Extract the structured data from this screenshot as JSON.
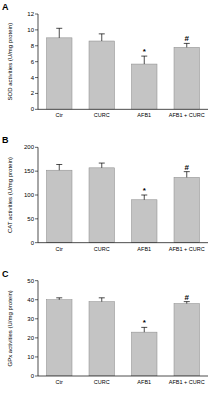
{
  "chart_data": [
    {
      "type": "bar",
      "title": "A",
      "y_label": "SOD activities (U/mg protein)",
      "categories": [
        "Ctr",
        "CURC",
        "AFB1",
        "AFB1 + CURC"
      ],
      "values": [
        9.0,
        8.6,
        5.7,
        7.8
      ],
      "errors": [
        1.2,
        0.9,
        1.0,
        0.5
      ],
      "color": "#c4c4c4",
      "ylim": [
        0,
        12
      ],
      "yticks": [
        0,
        2,
        4,
        6,
        8,
        10,
        12
      ],
      "grid": false,
      "annotations": [
        {
          "category": "AFB1",
          "text": "*"
        },
        {
          "category": "AFB1 + CURC",
          "text": "#"
        }
      ]
    },
    {
      "type": "bar",
      "title": "B",
      "y_label": "CAT activities (U/mg protein)",
      "categories": [
        "Ctr",
        "CURC",
        "AFB1",
        "AFB1 + CURC"
      ],
      "values": [
        152,
        157,
        90,
        137
      ],
      "errors": [
        12,
        10,
        10,
        12
      ],
      "color": "#c4c4c4",
      "ylim": [
        0,
        200
      ],
      "yticks": [
        0,
        50,
        100,
        150,
        200
      ],
      "grid": false,
      "annotations": [
        {
          "category": "AFB1",
          "text": "*"
        },
        {
          "category": "AFB1 + CURC",
          "text": "#"
        }
      ]
    },
    {
      "type": "bar",
      "title": "C",
      "y_label": "GPx activities (U/mg protein)",
      "categories": [
        "Ctr",
        "CURC",
        "AFB1",
        "AFB1 + CURC"
      ],
      "values": [
        40,
        39,
        23,
        38
      ],
      "errors": [
        1,
        2,
        2.5,
        1
      ],
      "color": "#c4c4c4",
      "ylim": [
        0,
        50
      ],
      "yticks": [
        0,
        10,
        20,
        30,
        40,
        50
      ],
      "grid": false,
      "annotations": [
        {
          "category": "AFB1",
          "text": "*"
        },
        {
          "category": "AFB1 + CURC",
          "text": "#"
        }
      ]
    }
  ]
}
